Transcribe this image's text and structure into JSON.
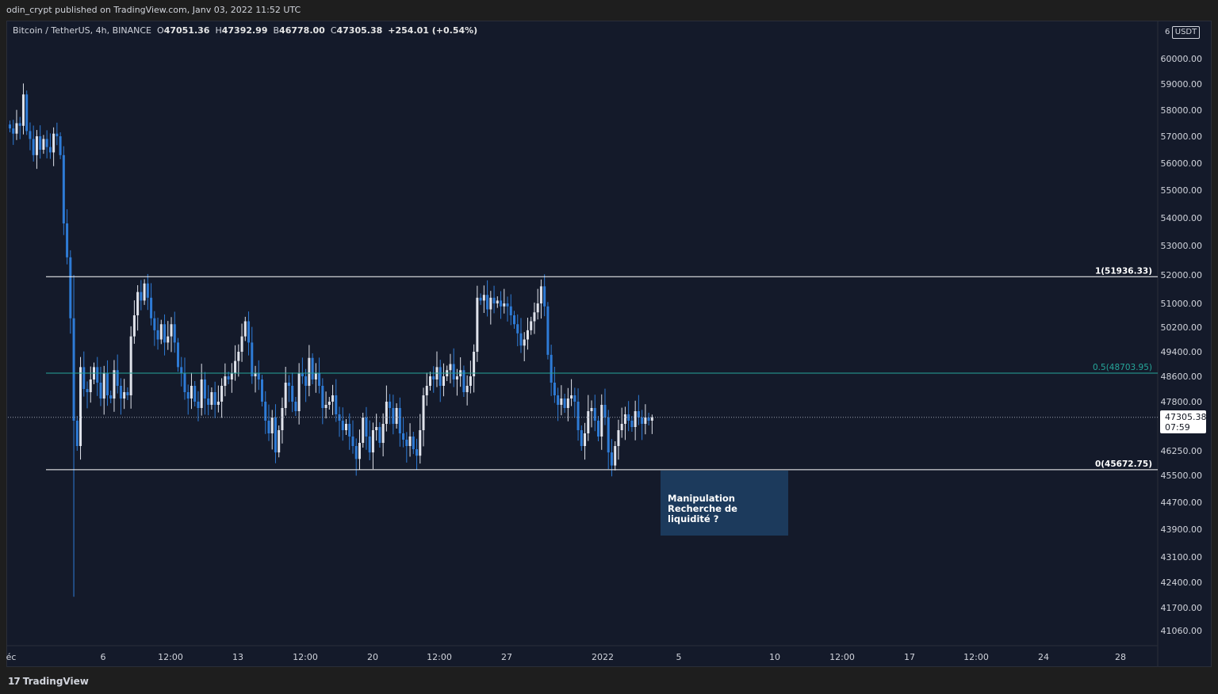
{
  "header": {
    "publisher_text": "odin_crypt published on TradingView.com, Janv 03, 2022 11:52 UTC"
  },
  "legend": {
    "symbol": "Bitcoin / TetherUS, 4h, BINANCE",
    "o_label": "O",
    "o_value": "47051.36",
    "h_label": "H",
    "h_value": "47392.99",
    "l_label": "B",
    "l_value": "46778.00",
    "c_label": "C",
    "c_value": "47305.38",
    "change": "+254.01 (+0.54%)"
  },
  "price_axis": {
    "currency": "USDT",
    "currency_prefix": "6"
  },
  "last_price": {
    "value": "47305.38",
    "countdown": "07:59"
  },
  "annotation": {
    "line1": "Manipulation",
    "line2": "Recherche de liquidité ?"
  },
  "footer": {
    "brand": "TradingView",
    "logo_glyph": "17"
  },
  "colors": {
    "background": "#141a2a",
    "candle_up": "#e0e3eb",
    "candle_down": "#2e7bd6",
    "fib_level": "#ffffff",
    "fib_mid": "#26a69a",
    "annotation_bg": "#1c3a5c"
  },
  "chart_data": {
    "type": "candlestick",
    "title": "Bitcoin / TetherUS, 4h, BINANCE",
    "y_ticks": [
      "60000.00",
      "59000.00",
      "58000.00",
      "57000.00",
      "56000.00",
      "55000.00",
      "54000.00",
      "53000.00",
      "52000.00",
      "51000.00",
      "50200.00",
      "49400.00",
      "48600.00",
      "47800.00",
      "46250.00",
      "45500.00",
      "44700.00",
      "43900.00",
      "43100.00",
      "42400.00",
      "41700.00",
      "41060.00"
    ],
    "x_ticks": [
      "éc",
      "6",
      "12:00",
      "13",
      "12:00",
      "20",
      "12:00",
      "27",
      "2022",
      "5",
      "10",
      "12:00",
      "17",
      "12:00",
      "24",
      "28"
    ],
    "fib_levels": [
      {
        "label": "1(51936.33)",
        "value": 51936.33
      },
      {
        "label": "0.5(48703.95)",
        "value": 48703.95
      },
      {
        "label": "0(45672.75)",
        "value": 45672.75
      }
    ],
    "last_price": 47305.38,
    "closes": [
      57300,
      57100,
      57500,
      57400,
      58600,
      57200,
      56900,
      56300,
      57000,
      56500,
      56900,
      56600,
      56400,
      57100,
      57000,
      56300,
      53800,
      52600,
      50500,
      47200,
      46400,
      48900,
      48200,
      48100,
      48500,
      48900,
      48400,
      47900,
      48700,
      48000,
      47900,
      48800,
      48300,
      47900,
      48100,
      48000,
      49900,
      50600,
      51400,
      51100,
      51700,
      51200,
      50500,
      50100,
      49800,
      50300,
      49700,
      49900,
      50300,
      49700,
      48900,
      48700,
      48100,
      47900,
      48300,
      47800,
      47600,
      48500,
      47900,
      47700,
      48100,
      47700,
      47800,
      48300,
      48600,
      48500,
      48700,
      49100,
      49400,
      49900,
      50400,
      49700,
      48600,
      48700,
      48500,
      47800,
      47200,
      46800,
      47300,
      46200,
      46900,
      47600,
      48400,
      48300,
      47800,
      47500,
      48700,
      48600,
      48300,
      49200,
      48500,
      48700,
      48300,
      47600,
      47700,
      47800,
      48000,
      47400,
      47200,
      46900,
      47100,
      46700,
      46400,
      46000,
      46500,
      47300,
      46700,
      46200,
      46900,
      47000,
      46500,
      47100,
      47800,
      47600,
      47100,
      47600,
      46800,
      46600,
      46400,
      46700,
      46300,
      46100,
      46900,
      48000,
      48300,
      48600,
      48500,
      48900,
      48300,
      48600,
      48800,
      49000,
      48500,
      48600,
      48800,
      48100,
      48300,
      48600,
      49400,
      51200,
      51100,
      51300,
      50800,
      51200,
      51000,
      51100,
      50900,
      51000,
      50900,
      50600,
      50300,
      50000,
      49600,
      49800,
      50100,
      50400,
      50700,
      51000,
      51600,
      50900,
      49300,
      48400,
      48000,
      47700,
      47900,
      47600,
      47900,
      48000,
      47800,
      46900,
      46400,
      46800,
      47500,
      47600,
      47200,
      46700,
      47700,
      47300,
      46200,
      45800,
      46400,
      46900,
      47100,
      47400,
      47200,
      47000,
      47500,
      47300,
      47100,
      47300,
      47200,
      47305
    ]
  }
}
